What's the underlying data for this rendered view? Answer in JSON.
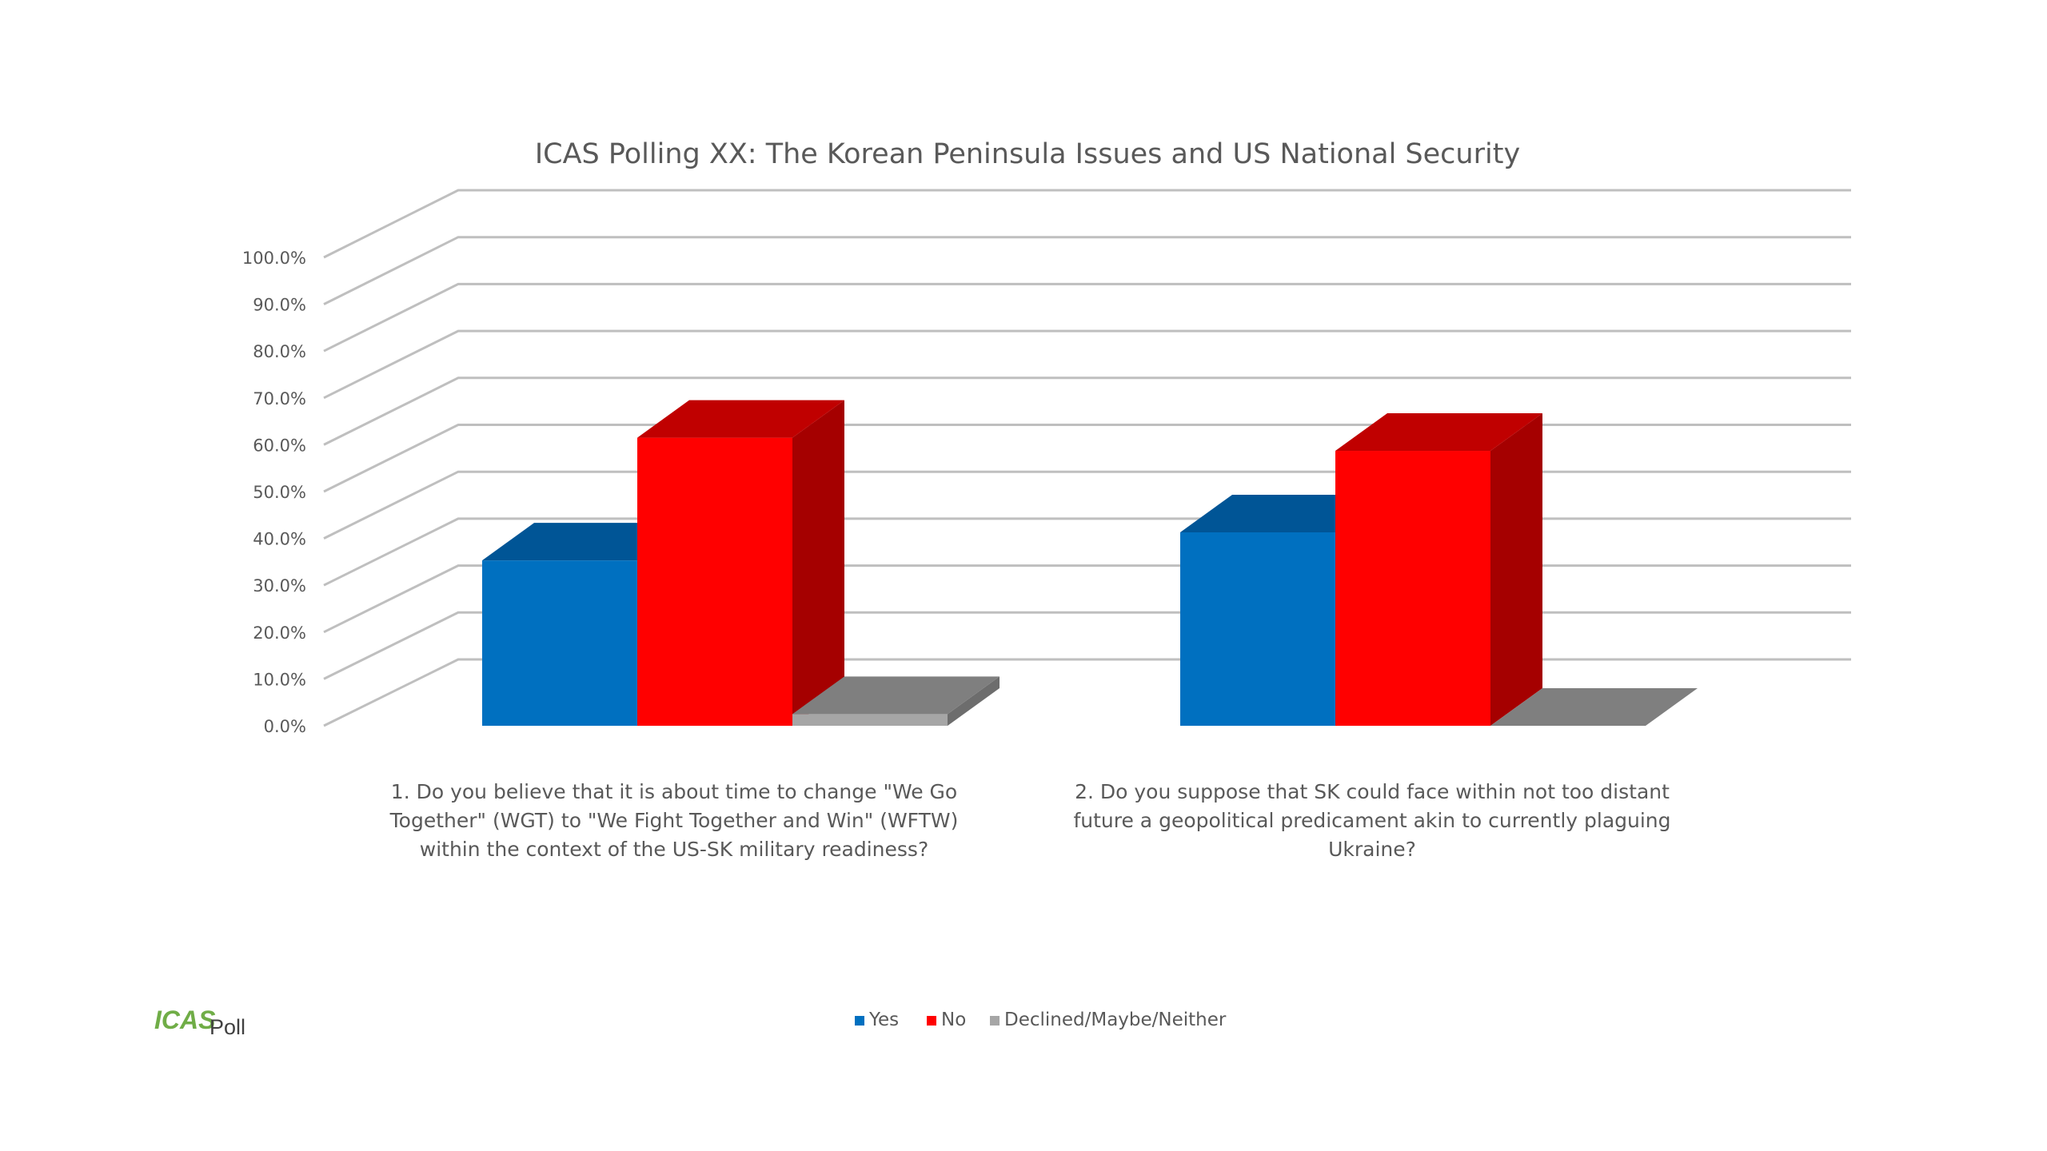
{
  "chart_data": {
    "type": "bar",
    "title": "ICAS Polling XX: The Korean Peninsula Issues and US National Security",
    "categories": [
      [
        "1.     Do you believe that it is about time to change \"We Go",
        "Together\" (WGT) to \"We Fight Together and Win\" (WFTW)",
        "within the context of the US-SK military readiness?"
      ],
      [
        "2.     Do you suppose that SK could face within not too distant",
        "future a geopolitical predicament akin to currently plaguing",
        "Ukraine?"
      ]
    ],
    "series": [
      {
        "name": "Yes",
        "values": [
          35.3,
          41.3
        ],
        "color": "#0070c0",
        "top_color": "#005596",
        "side_color": "#004e8a"
      },
      {
        "name": "No",
        "values": [
          61.5,
          58.7
        ],
        "color": "#ff0000",
        "top_color": "#c00000",
        "side_color": "#a50000"
      },
      {
        "name": "Declined/Maybe/Neither",
        "values": [
          2.5,
          0.0
        ],
        "color": "#a6a6a6",
        "top_color": "#7f7f7f",
        "side_color": "#6d6d6d"
      }
    ],
    "yticks": [
      "0.0%",
      "10.0%",
      "20.0%",
      "30.0%",
      "40.0%",
      "50.0%",
      "60.0%",
      "70.0%",
      "80.0%",
      "90.0%",
      "100.0%"
    ],
    "ylim": [
      0,
      100
    ],
    "grid": true,
    "legend_position": "bottom",
    "three_d": true
  },
  "logo": {
    "main": "ICAS",
    "sub": "Poll"
  }
}
